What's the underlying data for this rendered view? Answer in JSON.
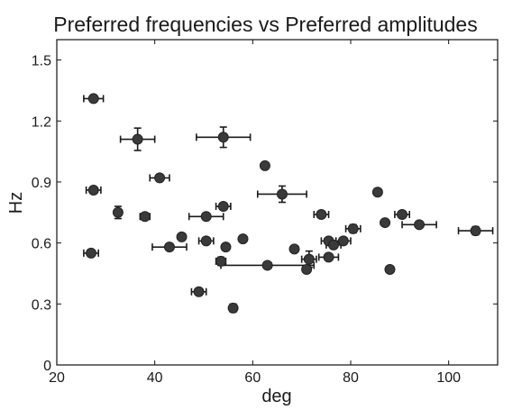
{
  "chart_data": {
    "type": "scatter",
    "title": "Preferred frequencies vs Preferred amplitudes",
    "xlabel": "deg",
    "ylabel": "Hz",
    "xlim": [
      20,
      110
    ],
    "ylim": [
      0,
      1.6
    ],
    "xticks": [
      "20",
      "40",
      "60",
      "80",
      "100"
    ],
    "yticks": [
      "0",
      "0.3",
      "0.6",
      "0.9",
      "1.2",
      "1.5"
    ],
    "grid": false,
    "marker_color": "#3a3a3a",
    "points": [
      {
        "x": 27.5,
        "y": 1.31,
        "xerr": 2.0,
        "yerr": 0
      },
      {
        "x": 36.5,
        "y": 1.11,
        "xerr": 3.5,
        "yerr": 0.055
      },
      {
        "x": 54.0,
        "y": 1.12,
        "xerr": 5.5,
        "yerr": 0.05
      },
      {
        "x": 62.5,
        "y": 0.98,
        "xerr": 0,
        "yerr": 0
      },
      {
        "x": 41.0,
        "y": 0.92,
        "xerr": 2.0,
        "yerr": 0
      },
      {
        "x": 27.5,
        "y": 0.86,
        "xerr": 1.5,
        "yerr": 0
      },
      {
        "x": 66.0,
        "y": 0.84,
        "xerr": 5.0,
        "yerr": 0.04
      },
      {
        "x": 85.5,
        "y": 0.85,
        "xerr": 0,
        "yerr": 0
      },
      {
        "x": 32.5,
        "y": 0.75,
        "xerr": 0,
        "yerr": 0.03
      },
      {
        "x": 38.0,
        "y": 0.73,
        "xerr": 1.0,
        "yerr": 0
      },
      {
        "x": 54.0,
        "y": 0.78,
        "xerr": 1.5,
        "yerr": 0
      },
      {
        "x": 50.5,
        "y": 0.73,
        "xerr": 3.5,
        "yerr": 0
      },
      {
        "x": 74.0,
        "y": 0.74,
        "xerr": 1.5,
        "yerr": 0
      },
      {
        "x": 87.0,
        "y": 0.7,
        "xerr": 0,
        "yerr": 0
      },
      {
        "x": 90.5,
        "y": 0.74,
        "xerr": 1.5,
        "yerr": 0
      },
      {
        "x": 94.0,
        "y": 0.69,
        "xerr": 3.5,
        "yerr": 0
      },
      {
        "x": 80.5,
        "y": 0.67,
        "xerr": 1.5,
        "yerr": 0.02
      },
      {
        "x": 105.5,
        "y": 0.66,
        "xerr": 3.5,
        "yerr": 0.02
      },
      {
        "x": 45.5,
        "y": 0.63,
        "xerr": 0,
        "yerr": 0
      },
      {
        "x": 43.0,
        "y": 0.58,
        "xerr": 3.5,
        "yerr": 0
      },
      {
        "x": 50.5,
        "y": 0.61,
        "xerr": 1.5,
        "yerr": 0
      },
      {
        "x": 54.5,
        "y": 0.58,
        "xerr": 0,
        "yerr": 0
      },
      {
        "x": 58.0,
        "y": 0.62,
        "xerr": 0,
        "yerr": 0
      },
      {
        "x": 27.0,
        "y": 0.55,
        "xerr": 1.5,
        "yerr": 0
      },
      {
        "x": 53.5,
        "y": 0.51,
        "xerr": 1.0,
        "yerr": 0.02
      },
      {
        "x": 63.0,
        "y": 0.49,
        "xerr": 9.5,
        "yerr": 0
      },
      {
        "x": 68.5,
        "y": 0.57,
        "xerr": 0,
        "yerr": 0
      },
      {
        "x": 71.5,
        "y": 0.52,
        "xerr": 1.5,
        "yerr": 0.04
      },
      {
        "x": 71.0,
        "y": 0.47,
        "xerr": 0,
        "yerr": 0
      },
      {
        "x": 75.5,
        "y": 0.61,
        "xerr": 1.5,
        "yerr": 0
      },
      {
        "x": 76.5,
        "y": 0.59,
        "xerr": 1.5,
        "yerr": 0
      },
      {
        "x": 78.5,
        "y": 0.61,
        "xerr": 1.5,
        "yerr": 0
      },
      {
        "x": 75.5,
        "y": 0.53,
        "xerr": 2.0,
        "yerr": 0
      },
      {
        "x": 88.0,
        "y": 0.47,
        "xerr": 0,
        "yerr": 0
      },
      {
        "x": 49.0,
        "y": 0.36,
        "xerr": 1.5,
        "yerr": 0
      },
      {
        "x": 56.0,
        "y": 0.28,
        "xerr": 0,
        "yerr": 0.02
      }
    ]
  }
}
